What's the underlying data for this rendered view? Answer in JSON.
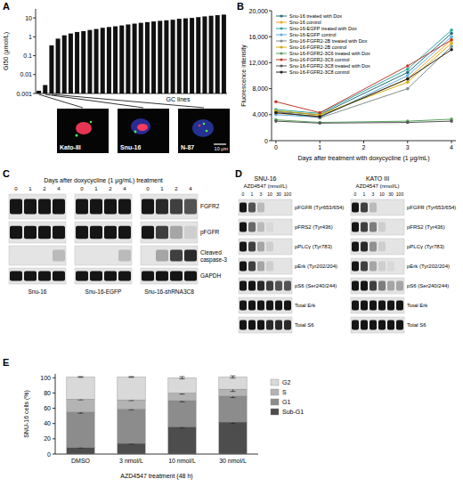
{
  "panels": [
    "A",
    "B",
    "C",
    "D",
    "E"
  ],
  "chart_data": [
    {
      "type": "bar",
      "y_label": "GI50 (μmol/L)",
      "x_label": "GC lines",
      "categories": [
        null,
        null,
        null,
        null,
        null,
        null,
        null,
        null,
        null,
        null,
        null,
        null,
        null,
        null,
        null,
        null,
        null,
        null,
        null,
        null,
        null,
        null,
        null,
        null,
        null,
        null,
        null,
        null,
        null,
        null
      ],
      "values": [
        0.0014,
        0.0028,
        0.35,
        0.8,
        1.2,
        1.5,
        1.8,
        2,
        2.3,
        2.6,
        3,
        3.3,
        3.6,
        4,
        4.5,
        5,
        5.5,
        6,
        6.5,
        7,
        7.5,
        8,
        9,
        9.5,
        10,
        11,
        12,
        13,
        14,
        15
      ],
      "color": "#111111",
      "log": "y",
      "ylim": [
        0.001,
        30
      ],
      "yticks": [
        0.001,
        0.01,
        0.1,
        1,
        10
      ],
      "tick_labels": "y",
      "annotations": [
        "Kato-III",
        "Snu-16",
        "N-87",
        "10 μm"
      ]
    },
    {
      "type": "line",
      "x_label": "Days after treatment with doxycycline (1 μg/mL)",
      "y_label": "Fluorescence intensity",
      "x": [
        0,
        1,
        3,
        4
      ],
      "xlim": [
        -0.1,
        4.1
      ],
      "xticks": [
        0,
        1,
        2,
        3,
        4
      ],
      "ylim": [
        0,
        20000
      ],
      "yticks": [
        0,
        {
          "value": 4000,
          "label": "4,000"
        },
        {
          "value": 8000,
          "label": "8,000"
        },
        {
          "value": 12000,
          "label": "12,000"
        },
        {
          "value": 16000,
          "label": "16,000"
        },
        {
          "value": 20000,
          "label": "20,000"
        }
      ],
      "legend": "upper left",
      "marker": "circle",
      "series": [
        {
          "name": "Snu-16 treated with Dox",
          "color": "#1f6f78",
          "values": [
            4500,
            4000,
            10500,
            16500
          ]
        },
        {
          "name": "Snu-16 control",
          "color": "#f5a623",
          "values": [
            4200,
            3800,
            9500,
            15500
          ]
        },
        {
          "name": "Snu-16-EGFP treated with Dox",
          "color": "#2ca6a4",
          "values": [
            4800,
            4200,
            11000,
            17000
          ]
        },
        {
          "name": "Snu-16-EGFP control",
          "color": "#5dade2",
          "values": [
            4000,
            3600,
            10000,
            16000
          ]
        },
        {
          "name": "Snu-16-FGFR2-2B treated with Dox",
          "color": "#7f8c8d",
          "values": [
            4500,
            3500,
            8000,
            14500
          ]
        },
        {
          "name": "Snu-16-FGFR2-2B control",
          "color": "#d4ac0d",
          "values": [
            4600,
            4000,
            9000,
            15000
          ]
        },
        {
          "name": "Snu-16-FGFR2-3C6 treated with Dox",
          "color": "#58a55c",
          "values": [
            3200,
            2800,
            3000,
            3300
          ]
        },
        {
          "name": "Snu-16-FGFR2-3C6 control",
          "color": "#c0392b",
          "values": [
            6000,
            4300,
            11500,
            15500
          ]
        },
        {
          "name": "Snu-16-FGFR2-3C8 treated with Dox",
          "color": "#555555",
          "values": [
            3000,
            2700,
            2800,
            3000
          ]
        },
        {
          "name": "Snu-16-FGFR2-3C8 control",
          "color": "#222222",
          "values": [
            4300,
            3700,
            9500,
            14000
          ]
        }
      ]
    },
    {
      "type": "bar",
      "stacked": true,
      "y_label": "SNU-16 cells (%)",
      "x_label": "AZD4547 treatment (48 h)",
      "categories": [
        "DMSO",
        "3 nmol/L",
        "10 nmol/L",
        "30 nmol/L"
      ],
      "ylim": [
        0,
        105
      ],
      "yticks": [
        0,
        20,
        40,
        60,
        80,
        100
      ],
      "legend": "right",
      "series": [
        {
          "name": "Sub-G1",
          "color": "#4d4d4d",
          "values": [
            9,
            14,
            36,
            42
          ],
          "errors": [
            1,
            1,
            2,
            2
          ]
        },
        {
          "name": "G1",
          "color": "#8c8c8c",
          "values": [
            46,
            45,
            34,
            34
          ],
          "errors": [
            1.5,
            1,
            1.5,
            2
          ]
        },
        {
          "name": "S",
          "color": "#b3b3b3",
          "values": [
            17,
            12,
            10,
            9
          ],
          "errors": [
            1,
            1,
            1.5,
            3
          ]
        },
        {
          "name": "G2",
          "color": "#d9d9d9",
          "values": [
            29,
            30,
            20,
            16
          ],
          "errors": [
            0.5,
            0.5,
            1.5,
            1.5
          ]
        }
      ]
    }
  ],
  "western_blot_c": {
    "title": "Days after doxycycline (1 μg/mL) treatment",
    "lanes": [
      0,
      1,
      2,
      4
    ],
    "row_labels": [
      "FGFR2",
      "pFGFR",
      "Cleaved caspase-3",
      "GAPDH"
    ],
    "groups": [
      {
        "name": "Snu-16",
        "intensity": [
          [
            1,
            1,
            1,
            1
          ],
          [
            1,
            1,
            1,
            1
          ],
          [
            0,
            0,
            0,
            0.2
          ],
          [
            1,
            1,
            1,
            1
          ]
        ]
      },
      {
        "name": "Snu-16-EGFP",
        "intensity": [
          [
            1,
            1,
            1,
            1
          ],
          [
            1,
            1,
            1,
            1
          ],
          [
            0,
            0,
            0,
            0.2
          ],
          [
            1,
            1,
            1,
            1
          ]
        ]
      },
      {
        "name": "Snu-16-shRNA3C8",
        "intensity": [
          [
            1,
            0.9,
            0.8,
            0.7
          ],
          [
            1,
            0.8,
            0.3,
            0.1
          ],
          [
            0,
            0.3,
            0.8,
            0.9
          ],
          [
            1,
            1,
            1,
            1
          ]
        ]
      }
    ]
  },
  "western_blot_d": {
    "x_label": "AZD4547 (nmol/L)",
    "lanes": [
      0,
      1,
      3,
      10,
      30,
      100
    ],
    "row_labels": [
      "pFGFR (Tyr653/654)",
      "pFRS2 (Tyr436)",
      "pPLCγ (Tyr783)",
      "pErk (Tyr202/204)",
      "pS6 (Ser240/244)",
      "Total Erk",
      "Total S6"
    ],
    "groups": [
      {
        "name": "SNU-16",
        "intensity": [
          [
            1,
            0.7,
            0.2,
            0,
            0,
            0
          ],
          [
            1,
            0.6,
            0.2,
            0.05,
            0,
            0
          ],
          [
            1,
            0.8,
            0.3,
            0.1,
            0,
            0
          ],
          [
            1,
            0.8,
            0.3,
            0.1,
            0,
            0
          ],
          [
            1,
            1,
            0.9,
            0.8,
            0.7,
            0.7
          ],
          [
            1,
            1,
            1,
            1,
            1,
            1
          ],
          [
            1,
            1,
            1,
            0.9,
            0.9,
            0.9
          ]
        ]
      },
      {
        "name": "KATO III",
        "intensity": [
          [
            1,
            0.8,
            0.2,
            0,
            0,
            0
          ],
          [
            1,
            0.8,
            0.5,
            0.1,
            0,
            0
          ],
          [
            1,
            0.9,
            0.4,
            0.1,
            0,
            0
          ],
          [
            1,
            0.8,
            0.3,
            0.1,
            0.05,
            0
          ],
          [
            1,
            1,
            0.8,
            0.5,
            0.3,
            0.3
          ],
          [
            1,
            1,
            1,
            1,
            1,
            1
          ],
          [
            1,
            1,
            1,
            1,
            1,
            1
          ]
        ]
      }
    ]
  }
}
